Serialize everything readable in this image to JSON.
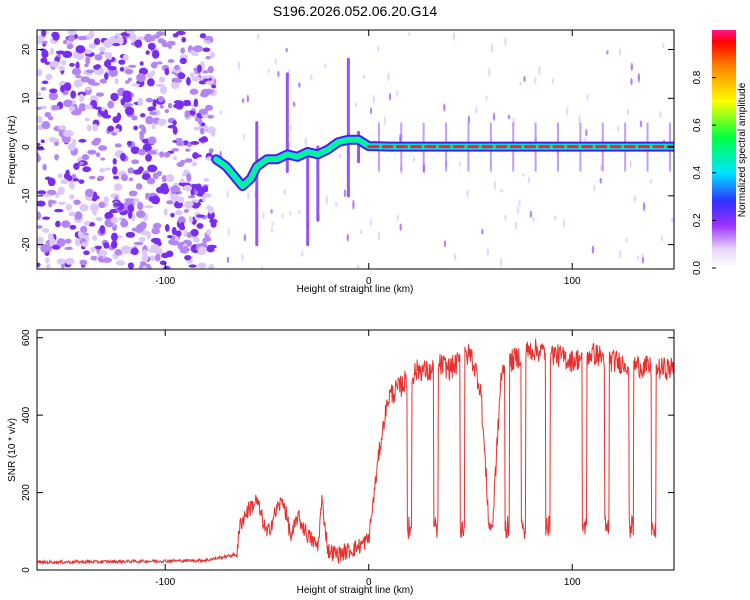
{
  "title": "S196.2026.052.06.20.G14",
  "chart_data": [
    {
      "type": "heatmap",
      "xlabel": "Height of straight line (km)",
      "ylabel": "Frequency (Hz)",
      "xlim": [
        -163,
        150
      ],
      "ylim": [
        -25,
        24
      ],
      "xticks": [
        -100,
        0,
        100
      ],
      "yticks": [
        -20,
        -10,
        0,
        10,
        20
      ],
      "description": "Spectral ridge: noisy scattered blobs for heights below -75 km; wavy trace near 0 Hz from -75 to 0 km; stable bright line at ~0 Hz from 0 to 150 km",
      "ridge": {
        "x": [
          -75,
          -70,
          -65,
          -62,
          -58,
          -55,
          -50,
          -45,
          -40,
          -35,
          -30,
          -25,
          -20,
          -15,
          -10,
          -5,
          0,
          10,
          50,
          100,
          150
        ],
        "y": [
          -2.5,
          -4,
          -6.5,
          -8,
          -6.5,
          -4,
          -2.5,
          -2.5,
          -1.5,
          -2,
          -1,
          -1.5,
          -0.5,
          1,
          1.5,
          1.5,
          0.2,
          0.1,
          0.1,
          0.1,
          0.1
        ]
      },
      "noise_region_x": [
        -163,
        -76
      ],
      "colorbar": {
        "label": "Normalized spectral amplitude",
        "range": [
          0.0,
          1.0
        ],
        "ticks": [
          "0.0",
          "0.2",
          "0.4",
          "0.6",
          "0.8"
        ]
      }
    },
    {
      "type": "line",
      "xlabel": "Height of straight line (km)",
      "ylabel": "SNR (10 * v/v)",
      "xlim": [
        -163,
        150
      ],
      "ylim": [
        0,
        620
      ],
      "xticks": [
        -100,
        0,
        100
      ],
      "yticks": [
        0,
        200,
        400,
        600
      ],
      "color": "#e8312f",
      "series": [
        {
          "name": "SNR",
          "x": [
            -163,
            -120,
            -80,
            -65,
            -63,
            -60,
            -55,
            -50,
            -45,
            -42,
            -38,
            -35,
            -30,
            -25,
            -23,
            -20,
            -15,
            -10,
            -5,
            0,
            5,
            8,
            10,
            15,
            20,
            25,
            30,
            35,
            40,
            45,
            50,
            55,
            60,
            65,
            70,
            80,
            90,
            100,
            110,
            120,
            130,
            140,
            150
          ],
          "y": [
            20,
            22,
            25,
            40,
            120,
            150,
            180,
            90,
            160,
            180,
            80,
            140,
            90,
            60,
            180,
            50,
            40,
            50,
            60,
            80,
            300,
            400,
            450,
            470,
            500,
            520,
            510,
            530,
            520,
            540,
            560,
            470,
            40,
            500,
            540,
            570,
            560,
            540,
            560,
            540,
            530,
            520,
            520
          ]
        }
      ],
      "dropouts_x": [
        20,
        33,
        46,
        60,
        68,
        76,
        88,
        106,
        117,
        129,
        140
      ]
    }
  ]
}
